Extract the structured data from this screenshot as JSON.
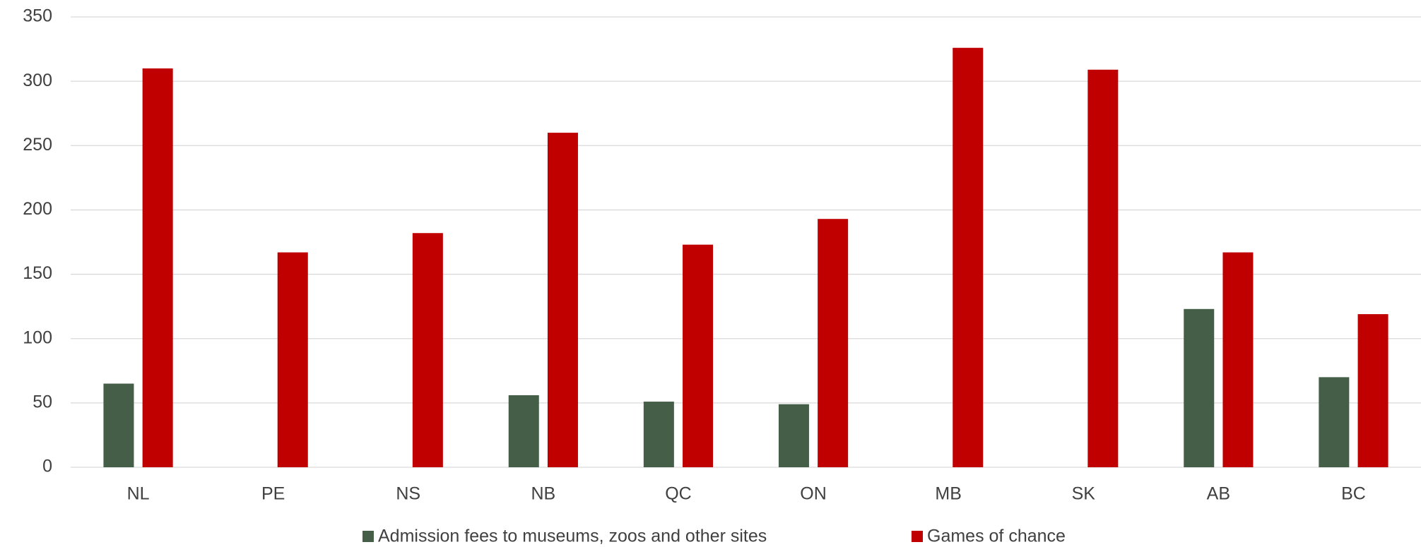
{
  "chart_data": {
    "type": "bar",
    "categories": [
      "NL",
      "PE",
      "NS",
      "NB",
      "QC",
      "ON",
      "MB",
      "SK",
      "AB",
      "BC"
    ],
    "series": [
      {
        "name": "Admission fees to museums, zoos and other sites",
        "color": "#445e47",
        "values": [
          65,
          null,
          null,
          56,
          51,
          49,
          null,
          null,
          123,
          70
        ]
      },
      {
        "name": "Games of chance",
        "color": "#c00000",
        "values": [
          310,
          167,
          182,
          260,
          173,
          193,
          326,
          309,
          167,
          119
        ]
      }
    ],
    "ylim": [
      0,
      350
    ],
    "yticks": [
      0,
      50,
      100,
      150,
      200,
      250,
      300,
      350
    ],
    "grid": true,
    "legend": "bottom"
  }
}
